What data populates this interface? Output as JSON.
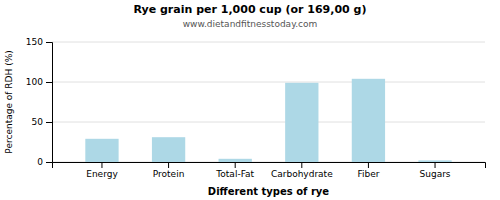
{
  "chart_data": {
    "type": "bar",
    "title": "Rye grain per 1,000 cup (or 169,00 g)",
    "subtitle": "www.dietandfitnesstoday.com",
    "xlabel": "Different types of rye",
    "ylabel": "Percentage of RDH (%)",
    "categories": [
      "Energy",
      "Protein",
      "Total-Fat",
      "Carbohydrate",
      "Fiber",
      "Sugars"
    ],
    "values": [
      29,
      31,
      4,
      99,
      104,
      2
    ],
    "color": "#add8e6",
    "ylim": [
      0,
      150
    ],
    "yticks": [
      0,
      50,
      100,
      150
    ],
    "grid": true
  }
}
